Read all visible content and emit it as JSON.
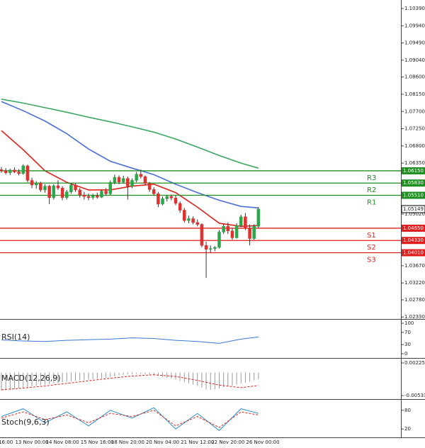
{
  "chart_data": {
    "type": "candlestick",
    "ylim": [
      1.02279,
      1.10612
    ],
    "yticks": [
      {
        "value": 1.1039,
        "label": "1.10390"
      },
      {
        "value": 1.0994,
        "label": "1.09940"
      },
      {
        "value": 1.0949,
        "label": "1.09490"
      },
      {
        "value": 1.0904,
        "label": "1.09040"
      },
      {
        "value": 1.086,
        "label": "1.08600"
      },
      {
        "value": 1.0815,
        "label": "1.08150"
      },
      {
        "value": 1.077,
        "label": "1.07700"
      },
      {
        "value": 1.0725,
        "label": "1.07250"
      },
      {
        "value": 1.068,
        "label": "1.06800"
      },
      {
        "value": 1.0635,
        "label": "1.06350"
      },
      {
        "value": 1.0502,
        "label": "1.05020"
      },
      {
        "value": 1.0367,
        "label": "1.03670"
      },
      {
        "value": 1.0322,
        "label": "1.03220"
      },
      {
        "value": 1.0278,
        "label": "1.02780"
      },
      {
        "value": 1.0233,
        "label": "1.02330"
      }
    ],
    "time_labels": [
      {
        "index": 1,
        "label": "16:00"
      },
      {
        "index": 7,
        "label": "13 Nov 00:00"
      },
      {
        "index": 14,
        "label": "14 Nov 08:00"
      },
      {
        "index": 22,
        "label": "15 Nov 16:00"
      },
      {
        "index": 29,
        "label": "18 Nov 20:00"
      },
      {
        "index": 37,
        "label": "20 Nov 04:00"
      },
      {
        "index": 45,
        "label": "21 Nov 12:00"
      },
      {
        "index": 52,
        "label": "22 Nov 20:00"
      },
      {
        "index": 60,
        "label": "26 Nov 00:00"
      }
    ],
    "up_color": "#2ca84a",
    "down_color": "#e0312e",
    "open": [
      1.0618,
      1.0615,
      1.061,
      1.0617,
      1.0612,
      1.0608,
      1.0628,
      1.059,
      1.0578,
      1.0583,
      1.0565,
      1.0575,
      1.0545,
      1.0576,
      1.057,
      1.0545,
      1.056,
      1.0578,
      1.0565,
      1.0552,
      1.0548,
      1.0545,
      1.055,
      1.0546,
      1.0562,
      1.0555,
      1.0585,
      1.0598,
      1.0586,
      1.0595,
      1.0575,
      1.059,
      1.0606,
      1.06,
      1.0582,
      1.0566,
      1.0555,
      1.0528,
      1.0542,
      1.0548,
      1.0544,
      1.053,
      1.0512,
      1.0485,
      1.049,
      1.048,
      1.0475,
      1.042,
      1.041,
      1.0412,
      1.0415,
      1.0455,
      1.047,
      1.0458,
      1.044,
      1.0472,
      1.0495,
      1.0465,
      1.0438,
      1.047
    ],
    "high": [
      1.0625,
      1.0622,
      1.062,
      1.0624,
      1.0619,
      1.0632,
      1.0631,
      1.0597,
      1.0588,
      1.0586,
      1.058,
      1.0578,
      1.058,
      1.059,
      1.0575,
      1.0565,
      1.0582,
      1.0583,
      1.057,
      1.056,
      1.0556,
      1.0555,
      1.0558,
      1.0565,
      1.057,
      1.059,
      1.0605,
      1.0603,
      1.0602,
      1.06,
      1.0595,
      1.0612,
      1.0618,
      1.0603,
      1.0586,
      1.0572,
      1.056,
      1.0548,
      1.0552,
      1.0553,
      1.055,
      1.0535,
      1.0518,
      1.0498,
      1.0496,
      1.0488,
      1.0478,
      1.043,
      1.042,
      1.0418,
      1.046,
      1.0478,
      1.048,
      1.0465,
      1.0478,
      1.05,
      1.0505,
      1.0475,
      1.0475,
      1.052
    ],
    "low": [
      1.061,
      1.0606,
      1.0604,
      1.0609,
      1.0603,
      1.0605,
      1.0585,
      1.057,
      1.0568,
      1.056,
      1.0558,
      1.0528,
      1.054,
      1.0565,
      1.0538,
      1.054,
      1.0555,
      1.056,
      1.0545,
      1.054,
      1.0538,
      1.054,
      1.0542,
      1.0544,
      1.055,
      1.0552,
      1.058,
      1.058,
      1.0582,
      1.054,
      1.057,
      1.0585,
      1.0595,
      1.0578,
      1.056,
      1.055,
      1.052,
      1.0525,
      1.0535,
      1.0538,
      1.0525,
      1.0505,
      1.048,
      1.0478,
      1.0475,
      1.047,
      1.0415,
      1.0335,
      1.0402,
      1.0405,
      1.0412,
      1.045,
      1.045,
      1.0435,
      1.0438,
      1.0468,
      1.046,
      1.042,
      1.0435,
      1.0465
    ],
    "close": [
      1.0615,
      1.061,
      1.0617,
      1.0612,
      1.0608,
      1.0628,
      1.059,
      1.0578,
      1.0583,
      1.0565,
      1.0575,
      1.0545,
      1.0576,
      1.057,
      1.0545,
      1.056,
      1.0578,
      1.0565,
      1.0552,
      1.0548,
      1.0545,
      1.055,
      1.0546,
      1.0562,
      1.0555,
      1.0585,
      1.0598,
      1.0586,
      1.0595,
      1.0575,
      1.059,
      1.0606,
      1.06,
      1.0582,
      1.0566,
      1.0555,
      1.0528,
      1.0542,
      1.0548,
      1.0544,
      1.053,
      1.0512,
      1.0485,
      1.049,
      1.048,
      1.0475,
      1.042,
      1.041,
      1.0412,
      1.0415,
      1.0455,
      1.047,
      1.0458,
      1.044,
      1.0472,
      1.0495,
      1.0465,
      1.0438,
      1.047,
      1.05149
    ],
    "ma_index": [
      0,
      5,
      10,
      15,
      20,
      25,
      30,
      35,
      40,
      45,
      50,
      55,
      59
    ],
    "moving_averages": [
      {
        "color": "#4a6fd8",
        "values": [
          1.0796,
          1.0772,
          1.0745,
          1.0712,
          1.0672,
          1.064,
          1.0622,
          1.0605,
          1.058,
          1.0558,
          1.0538,
          1.0522,
          1.0518
        ]
      },
      {
        "color": "#e3221c",
        "values": [
          1.072,
          1.067,
          1.0615,
          1.0585,
          1.0565,
          1.0565,
          1.0575,
          1.058,
          1.0558,
          1.052,
          1.0478,
          1.047,
          1.0472
        ]
      },
      {
        "color": "#3aa860",
        "values": [
          1.0802,
          1.0792,
          1.078,
          1.0768,
          1.0755,
          1.0743,
          1.073,
          1.0716,
          1.0698,
          1.0677,
          1.0655,
          1.0635,
          1.0622
        ]
      }
    ],
    "levels": [
      {
        "name": "R3",
        "value": 1.0615,
        "value_label": "1.06150",
        "color": "#1e8f1e"
      },
      {
        "name": "R2",
        "value": 1.0583,
        "value_label": "1.05830",
        "color": "#1e8f1e"
      },
      {
        "name": "R1",
        "value": 1.0551,
        "value_label": "1.05510",
        "color": "#1e8f1e"
      },
      {
        "name": "S1",
        "value": 1.0465,
        "value_label": "1.04650",
        "color": "#e01e1e"
      },
      {
        "name": "S2",
        "value": 1.0433,
        "value_label": "1.04330",
        "color": "#e01e1e"
      },
      {
        "name": "S3",
        "value": 1.0401,
        "value_label": "1.04010",
        "color": "#e01e1e"
      }
    ],
    "last_price": {
      "value": 1.05149,
      "label": "1.05149"
    },
    "indicators": [
      {
        "type": "line",
        "title": "RSI(14)",
        "ylim": [
          0,
          100
        ],
        "yticks": [
          100,
          70,
          30,
          0
        ],
        "series": [
          {
            "color": "#3a78d8",
            "values": [
              45,
              42,
              40,
              44,
              46,
              48,
              52,
              50,
              44,
              40,
              34,
              48,
              55
            ]
          }
        ]
      },
      {
        "type": "macd",
        "title": "MACD(12,26,9)",
        "ylim": [
          -0.005334,
          0.002252
        ],
        "yticks": [
          0.002252,
          -0.005334
        ],
        "hist_color": "#9a9a9a",
        "histogram": [
          -0.0042,
          -0.0041,
          -0.004,
          -0.0038,
          -0.0037,
          -0.0035,
          -0.0034,
          -0.0032,
          -0.0031,
          -0.0029,
          -0.0028,
          -0.0027,
          -0.0025,
          -0.0024,
          -0.0023,
          -0.0021,
          -0.002,
          -0.0019,
          -0.0018,
          -0.0017,
          -0.0016,
          -0.0015,
          -0.0014,
          -0.0013,
          -0.0012,
          -0.001,
          -0.0008,
          -0.0006,
          -0.0005,
          -0.0004,
          -0.0004,
          -0.0003,
          -0.0003,
          -0.0004,
          -0.0005,
          -0.0006,
          -0.0008,
          -0.001,
          -0.0012,
          -0.0014,
          -0.0016,
          -0.0019,
          -0.0022,
          -0.0025,
          -0.0028,
          -0.0031,
          -0.0035,
          -0.0039,
          -0.004,
          -0.0039,
          -0.0037,
          -0.0034,
          -0.0032,
          -0.003,
          -0.0028,
          -0.0025,
          -0.0023,
          -0.0021,
          -0.0018,
          -0.0015
        ],
        "series": [
          {
            "color": "#e3221c",
            "dashed": true,
            "values": [
              -0.004,
              -0.0036,
              -0.0031,
              -0.0025,
              -0.0019,
              -0.0013,
              -0.0008,
              -0.0005,
              -0.0009,
              -0.0018,
              -0.0029,
              -0.0035,
              -0.003
            ]
          }
        ]
      },
      {
        "type": "line",
        "title": "Stoch(9,6,3)",
        "ylim": [
          0,
          100
        ],
        "yticks": [
          80,
          20
        ],
        "series": [
          {
            "color": "#2a8fc8",
            "values": [
              60,
              85,
              40,
              75,
              30,
              80,
              55,
              88,
              20,
              70,
              15,
              85,
              70
            ]
          },
          {
            "color": "#e3221c",
            "dashed": true,
            "values": [
              55,
              75,
              50,
              65,
              40,
              70,
              60,
              80,
              30,
              60,
              25,
              75,
              65
            ]
          }
        ]
      }
    ]
  }
}
